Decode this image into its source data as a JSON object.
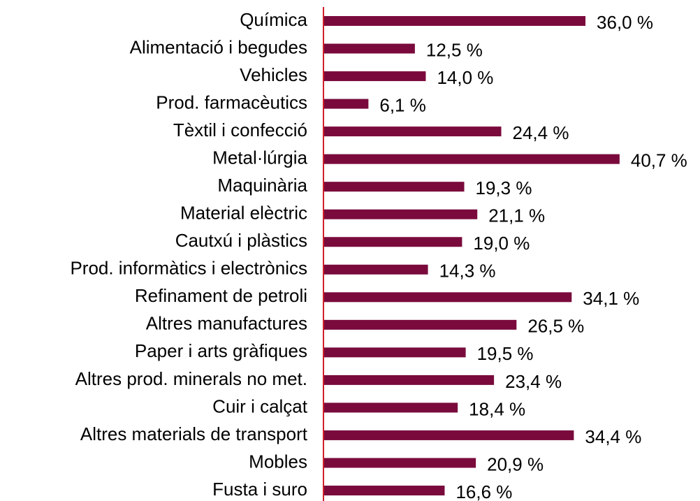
{
  "chart_data": {
    "type": "barh",
    "color": "#7a0a3c",
    "categories": [
      "Química",
      "Alimentació i begudes",
      "Vehicles",
      "Prod. farmacèutics",
      "Tèxtil i confecció",
      "Metal·lúrgia",
      "Maquinària",
      "Material elèctric",
      "Cautxú i plàstics",
      "Prod. informàtics i electrònics",
      "Refinament de petroli",
      "Altres manufactures",
      "Paper i arts gràfiques",
      "Altres prod. minerals no met.",
      "Cuir i calçat",
      "Altres materials de transport",
      "Mobles",
      "Fusta i suro"
    ],
    "values": [
      36.0,
      12.5,
      14.0,
      6.1,
      24.4,
      40.7,
      19.3,
      21.1,
      19.0,
      14.3,
      34.1,
      26.5,
      19.5,
      23.4,
      18.4,
      34.4,
      20.9,
      16.6
    ],
    "value_labels": [
      "36,0 %",
      "12,5 %",
      "14,0 %",
      "6,1 %",
      "24,4 %",
      "40,7 %",
      "19,3 %",
      "21,1 %",
      "19,0 %",
      "14,3 %",
      "34,1 %",
      "26,5 %",
      "19,5 %",
      "23,4 %",
      "18,4 %",
      "34,4 %",
      "20,9 %",
      "16,6 %"
    ]
  }
}
